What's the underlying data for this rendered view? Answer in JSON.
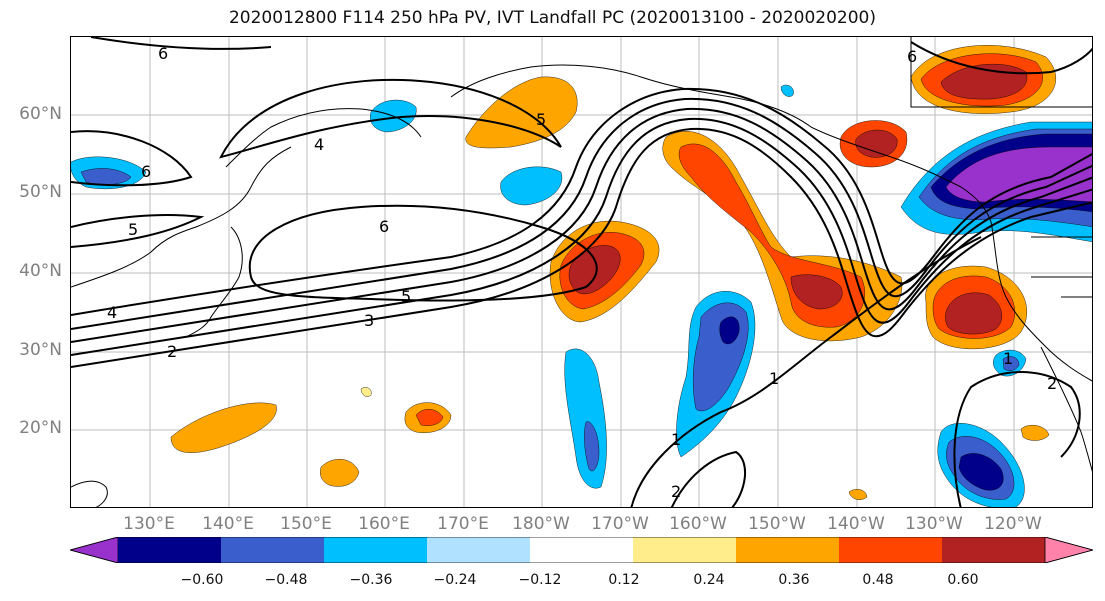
{
  "title": "2020012800 F114 250 hPa PV, IVT Landfall PC (2020013100 - 2020020200)",
  "latitude_labels": [
    "60°N",
    "50°N",
    "40°N",
    "30°N",
    "20°N"
  ],
  "longitude_labels": [
    "130°E",
    "140°E",
    "150°E",
    "160°E",
    "170°E",
    "180°W",
    "170°W",
    "160°W",
    "150°W",
    "140°W",
    "130°W",
    "120°W"
  ],
  "contour_labels": [
    "6",
    "6",
    "6",
    "6",
    "5",
    "5",
    "5",
    "4",
    "4",
    "3",
    "2",
    "1",
    "1",
    "1",
    "2",
    "2"
  ],
  "colorbar": {
    "tick_labels": [
      "−0.60",
      "−0.48",
      "−0.36",
      "−0.24",
      "−0.12",
      "0.12",
      "0.24",
      "0.36",
      "0.48",
      "0.60"
    ],
    "colors": [
      "#9932CC",
      "#00008B",
      "#3A5FCD",
      "#00BFFF",
      "#B0E2FF",
      "#FFFFFF",
      "#FFEC8B",
      "#FFA500",
      "#FF4500",
      "#B22222",
      "#FF82AB"
    ]
  }
}
